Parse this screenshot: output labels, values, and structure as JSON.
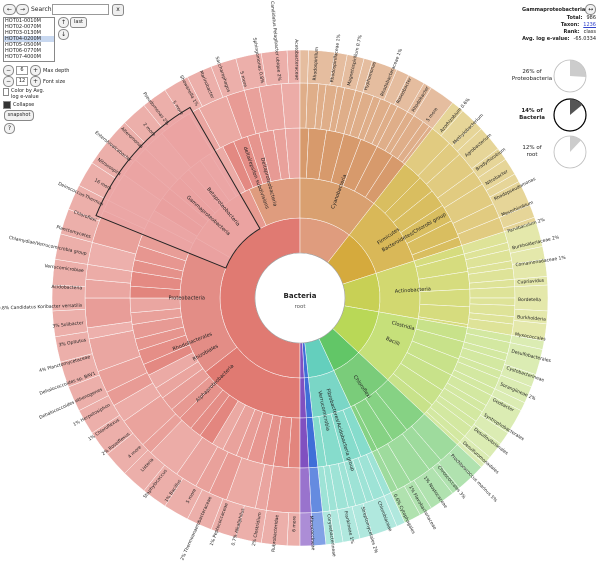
{
  "toolbar": {
    "back_label": "←",
    "forward_label": "→",
    "search_label": "Search:",
    "search_value": "",
    "clear_label": "x",
    "last_label": "last"
  },
  "datasets": {
    "items": [
      "HOT01-0010M",
      "HOT02-0070M",
      "HOT03-0130M",
      "HOT04-0200M",
      "HOT05-0500M",
      "HOT06-0770M",
      "HOT07-4000M"
    ],
    "selected_index": 3,
    "up_label": "↑",
    "down_label": "↓"
  },
  "controls": {
    "max_depth_label": "Max depth",
    "max_depth_value": "6",
    "font_size_label": "Font size",
    "font_size_value": "12",
    "color_by_label": "Color by Avg. log e-value",
    "collapse_label": "Collapse",
    "snapshot_label": "snapshot",
    "help_label": "?"
  },
  "details": {
    "title": "Gammaproteobacteria",
    "expand_label": "↔",
    "rows": [
      {
        "k": "Total:",
        "v": "986"
      },
      {
        "k": "Taxon:",
        "v": "1236"
      },
      {
        "k": "Rank:",
        "v": "class"
      },
      {
        "k": "Avg. log e-value:",
        "v": "-65.0334"
      }
    ],
    "pies": [
      {
        "pct": 26,
        "label": "26% of",
        "label2": "Proteobacteria",
        "bold": false
      },
      {
        "pct": 14,
        "label": "14% of",
        "label2": "Bacteria",
        "bold": true
      },
      {
        "pct": 12,
        "label": "12% of",
        "label2": "root",
        "bold": false
      }
    ]
  },
  "center": {
    "title": "Bacteria",
    "subtitle": "root"
  },
  "colors": {
    "proteobacteria": "#e07a72",
    "gamma": "#eba4a4",
    "delta": "#df9c7e",
    "cyano": "#d5aa3d",
    "firmicutes": "#b9d857",
    "green": "#62c667",
    "teal": "#64cfbd",
    "blue": "#3f6ed8",
    "purple": "#8050c0"
  },
  "rings": [
    {
      "name": "Proteobacteria",
      "segments": [
        {
          "label": "Proteobacteria",
          "start": -180,
          "end": 0,
          "color": "#e07a72"
        }
      ]
    },
    {
      "name": "Cyanobacteria",
      "segments": []
    }
  ],
  "labels": {
    "inner": [
      "Proteobacteria",
      "Cyanobacteria",
      "Firmicutes",
      "Actinobacteria",
      "Bacteroidetes/Chlorobi group",
      "Fibrobacteres/Acidobacteria group",
      "Verrucomicrobia",
      "Chloroflexi",
      "Deltaproteobacteria",
      "Alphaproteobacteria",
      "Gammaproteobacteria",
      "Betaproteobacteria",
      "deltal/epsilon subdivisions",
      "Bacilli",
      "Clostridia",
      "Rhizobiales",
      "Rhodobacterales"
    ],
    "outer": [
      "16 more",
      "Nitrosospira",
      "Enterohioalcabacter",
      "Alteromonas",
      "2 more",
      "Pseudomonas 2%",
      "5 more",
      "Shewanella 1%",
      "Marinobacter",
      "Saccharophagus",
      "5 more",
      "Sphingomonas 0.8%",
      "Candidatus Pelagibacter ubique 2%",
      "Acetobacteraceae",
      "Rhodospirillum",
      "Rhodospirillaceae 1%",
      "Magnetospirillum 0.7%",
      "Hyphomonas",
      "Rhodobacteraceae 1%",
      "Roseobacter",
      "Rhodobacter",
      "5 more",
      "Azorhizobium 0.6%",
      "Methylobacterium",
      "Agrobacterium",
      "Bradyrhizobium",
      "Nitrobacter",
      "Rhodopseudomonas",
      "Mesorhizobium",
      "Parvibaculum 2%",
      "Burkholderiaceae 2%",
      "Comamonadaceae 1%",
      "Cupriavidus",
      "Bordetella",
      "Burkholderia",
      "Myxococcales",
      "Desulfobacterales",
      "Cystobacterineae",
      "Sorangiineae 2%",
      "Geobacter",
      "Syntrophobacterales",
      "Desulfovibrionales",
      "Desulfuromonadales",
      "Prochlorococcus marinus 5%",
      "Chroococcales 3%",
      "1% Nostocaceae",
      "1% Flavobacteriaceae",
      "0.6% Cytophagales",
      "Chlorobiaceae",
      "Streptomycetales 2%",
      "Frankineae 1%",
      "Corynebacterineae",
      "Micrococcineae",
      "6 more",
      "Rubrobacteridae",
      "2% Clostridium",
      "0.7% Alkaliphilus",
      "1% Peptococcaceae",
      "2% Thermoanaerobacteraceae",
      "5 more",
      "1% Bacillus",
      "Staphylococcus",
      "Listeria",
      "4 more",
      "2% Roseiflexus",
      "1% Chloroflexus",
      "1% Herpetosiphon",
      "Dehalococcoides ethenogenes",
      "Dehalococcoides sp. BAV1",
      "4% Planctomycetaceae",
      "3% Opitutus",
      "3% Solibacter",
      "0.8% Candidatus Koribacter versatilis",
      "Acidobacteria",
      "Verrucomicrobiae",
      "Chlamydiae/Verrucomicrobia group",
      "Planctomycetes",
      "Chloroflexi",
      "Deinococcus-Thermus"
    ]
  }
}
